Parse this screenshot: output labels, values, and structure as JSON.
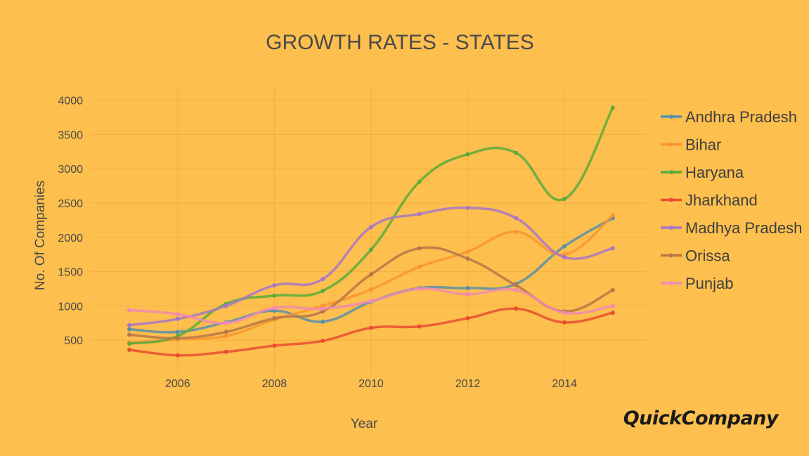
{
  "brand": "QuickCompany",
  "chart_data": {
    "type": "line",
    "title": "GROWTH RATES  -  STATES",
    "xlabel": "Year",
    "ylabel": "No. Of Companies",
    "x": [
      2005,
      2006,
      2007,
      2008,
      2009,
      2010,
      2011,
      2012,
      2013,
      2014,
      2015
    ],
    "xlim": [
      2004.2,
      2015.7
    ],
    "ylim": [
      0,
      4200
    ],
    "xticks": [
      2006,
      2008,
      2010,
      2012,
      2014
    ],
    "yticks": [
      500,
      1000,
      1500,
      2000,
      2500,
      3000,
      3500,
      4000
    ],
    "grid": true,
    "legend_position": "right",
    "series": [
      {
        "name": "Andhra Pradesh",
        "color": "#5b8fa8",
        "values": [
          660,
          620,
          760,
          930,
          770,
          1060,
          1260,
          1260,
          1320,
          1870,
          2280
        ]
      },
      {
        "name": "Bihar",
        "color": "#f8952f",
        "values": [
          460,
          510,
          560,
          800,
          1000,
          1240,
          1570,
          1790,
          2080,
          1750,
          2320
        ]
      },
      {
        "name": "Haryana",
        "color": "#5aaa3a",
        "values": [
          450,
          560,
          1030,
          1150,
          1220,
          1820,
          2810,
          3210,
          3230,
          2560,
          3890
        ]
      },
      {
        "name": "Jharkhand",
        "color": "#e84e30",
        "values": [
          360,
          280,
          330,
          420,
          490,
          680,
          700,
          820,
          960,
          760,
          900
        ]
      },
      {
        "name": "Madhya Pradesh",
        "color": "#a777c7",
        "values": [
          720,
          810,
          1000,
          1300,
          1390,
          2150,
          2340,
          2430,
          2280,
          1710,
          1840
        ]
      },
      {
        "name": "Orissa",
        "color": "#b57747",
        "values": [
          580,
          530,
          620,
          820,
          920,
          1460,
          1840,
          1690,
          1300,
          920,
          1230
        ]
      },
      {
        "name": "Punjab",
        "color": "#f28ab1",
        "values": [
          940,
          880,
          750,
          970,
          960,
          1070,
          1250,
          1170,
          1230,
          900,
          1000
        ]
      }
    ]
  }
}
